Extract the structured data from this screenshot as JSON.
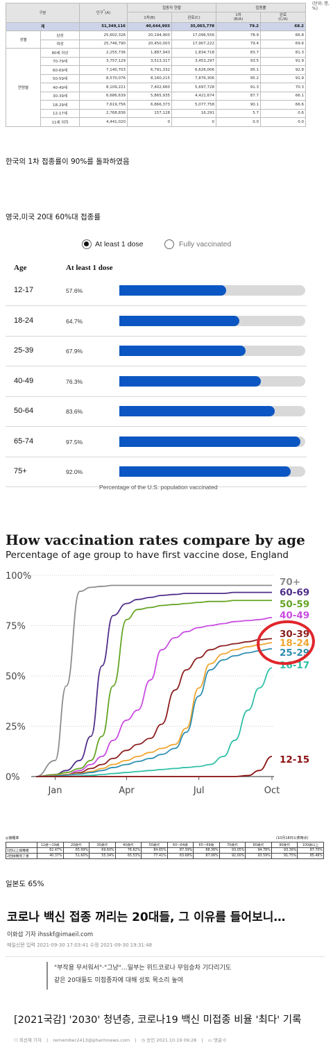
{
  "kr_table": {
    "corner_fragment": "(단위: 명, %)",
    "head": {
      "group": "구분",
      "population": "인구",
      "vaccinated_group": "접종자 현황",
      "first_dose": "1차(B)",
      "completed": "완료(C)",
      "rate_group": "접종률",
      "first_rate": "1차",
      "first_rate_sub": "(B/A)",
      "completed_rate": "완료",
      "completed_rate_sub": "(C/A)"
    },
    "total": {
      "label": "계",
      "population": "51,349,116",
      "first": "40,644,903",
      "completed": "35,003,778",
      "first_rate": "79.2",
      "completed_rate": "68.2"
    },
    "sex_label": "성별",
    "sex_rows": [
      {
        "label": "남성",
        "population": "25,602,326",
        "first": "20,194,900",
        "completed": "17,096,556",
        "first_rate": "78.9",
        "completed_rate": "66.8"
      },
      {
        "label": "여성",
        "population": "25,746,790",
        "first": "20,450,003",
        "completed": "17,907,222",
        "first_rate": "79.4",
        "completed_rate": "69.6"
      }
    ],
    "age_label": "연령별",
    "age_rows": [
      {
        "label": "80세 이상",
        "population": "2,255,736",
        "first": "1,887,943",
        "completed": "1,834,718",
        "first_rate": "83.7",
        "completed_rate": "81.3"
      },
      {
        "label": "70-79세",
        "population": "3,757,129",
        "first": "3,513,317",
        "completed": "3,453,297",
        "first_rate": "93.5",
        "completed_rate": "91.9"
      },
      {
        "label": "60-69세",
        "population": "7,140,703",
        "first": "6,791,332",
        "completed": "6,626,006",
        "first_rate": "95.1",
        "completed_rate": "92.8"
      },
      {
        "label": "50-59세",
        "population": "8,570,076",
        "first": "8,160,215",
        "completed": "7,876,306",
        "first_rate": "95.2",
        "completed_rate": "91.9"
      },
      {
        "label": "40-49세",
        "population": "8,109,221",
        "first": "7,402,660",
        "completed": "5,697,728",
        "first_rate": "91.3",
        "completed_rate": "70.3"
      },
      {
        "label": "30-39세",
        "population": "6,686,639",
        "first": "5,865,935",
        "completed": "4,421,674",
        "first_rate": "87.7",
        "completed_rate": "66.1"
      },
      {
        "label": "18-29세",
        "population": "7,619,756",
        "first": "6,866,373",
        "completed": "5,077,758",
        "first_rate": "90.1",
        "completed_rate": "66.6"
      },
      {
        "label": "12-17세",
        "population": "2,768,836",
        "first": "157,128",
        "completed": "16,291",
        "first_rate": "5.7",
        "completed_rate": "0.6"
      },
      {
        "label": "11세 이하",
        "population": "4,441,020",
        "first": "0",
        "completed": "0",
        "first_rate": "0.0",
        "completed_rate": "0.0"
      }
    ]
  },
  "caption_kr": "한국의 1차 접종률이 90%를 돌파하였음",
  "caption_uk_us": "영국,미국 20대 60%대 접종률",
  "us_chart": {
    "legend_on": "At least 1 dose",
    "legend_off": "Fully vaccinated",
    "col_age": "Age",
    "col_measure": "At least 1 dose",
    "footer": "Percentage of the U.S. population vaccinated",
    "fill_color": "#0b56c2",
    "track_color": "#d9d9d9"
  },
  "en_chart": {
    "title": "How vaccination rates compare by age",
    "subtitle": "Percentage of age group to have first vaccine dose, England",
    "highlight_color": "#e0262b"
  },
  "chart_data": [
    {
      "type": "bar",
      "categories": [
        "12-17",
        "18-24",
        "25-39",
        "40-49",
        "50-64",
        "65-74",
        "75+"
      ],
      "values": [
        57.6,
        64.7,
        67.9,
        76.3,
        83.6,
        97.5,
        92.0
      ],
      "value_labels": [
        "57.6%",
        "64.7%",
        "67.9%",
        "76.3%",
        "83.6%",
        "97.5%",
        "92.0%"
      ],
      "xlabel": "Percentage of the U.S. population vaccinated",
      "ylabel": "Age",
      "ylim": [
        0,
        100
      ]
    },
    {
      "type": "line",
      "title": "How vaccination rates compare by age",
      "subtitle": "Percentage of age group to have first vaccine dose, England",
      "x_ticks": [
        "Jan",
        "Apr",
        "Jul",
        "Oct"
      ],
      "y_ticks": [
        "0%",
        "25%",
        "50%",
        "75%",
        "100%"
      ],
      "ylim": [
        0,
        100
      ],
      "grid": true,
      "x": [
        "2020-12-08",
        "2021-01-01",
        "2021-01-15",
        "2021-02-01",
        "2021-02-15",
        "2021-03-01",
        "2021-03-15",
        "2021-04-01",
        "2021-04-15",
        "2021-05-01",
        "2021-05-15",
        "2021-06-01",
        "2021-06-15",
        "2021-07-01",
        "2021-07-15",
        "2021-08-01",
        "2021-08-15",
        "2021-09-01",
        "2021-09-15",
        "2021-10-01"
      ],
      "series": [
        {
          "name": "70+",
          "color": "#8c8c8c",
          "values": [
            0,
            8,
            45,
            92,
            94,
            94.5,
            95,
            95,
            95,
            95,
            95,
            95,
            95,
            95,
            95,
            95,
            95,
            95,
            95,
            95
          ]
        },
        {
          "name": "60-69",
          "color": "#4f2e8a",
          "values": [
            0,
            1,
            3,
            8,
            20,
            55,
            80,
            86,
            88,
            89,
            90,
            90.5,
            91,
            91,
            91,
            91,
            91.5,
            91.5,
            91.5,
            91.5
          ]
        },
        {
          "name": "50-59",
          "color": "#64a424",
          "values": [
            0,
            1,
            2,
            4,
            8,
            20,
            45,
            78,
            83,
            84,
            85,
            85.5,
            86,
            86.5,
            87,
            87,
            87.5,
            87.5,
            87.5,
            87.5
          ]
        },
        {
          "name": "40-49",
          "color": "#c94ce0",
          "values": [
            0,
            0.5,
            1,
            3,
            6,
            10,
            18,
            28,
            33,
            48,
            63,
            69,
            72,
            74,
            75,
            76,
            77,
            77.5,
            78,
            79
          ]
        },
        {
          "name": "30-39",
          "color": "#8c1e1e",
          "values": [
            0,
            0.5,
            1,
            2,
            4,
            6,
            9,
            13,
            16,
            19,
            26,
            43,
            53,
            59,
            63,
            65,
            66,
            67,
            68,
            68.5
          ]
        },
        {
          "name": "18-24",
          "color": "#f0a630",
          "values": [
            0,
            0.5,
            1,
            1.5,
            2.5,
            4,
            6,
            8,
            10,
            12,
            14,
            16,
            24,
            44,
            56,
            61,
            63,
            64.5,
            65.5,
            66.5
          ]
        },
        {
          "name": "25-29",
          "color": "#2d8db0",
          "values": [
            0,
            0.3,
            0.7,
            1.2,
            2,
            3,
            4.5,
            6,
            7.5,
            9,
            11,
            14,
            22,
            40,
            53,
            58,
            60,
            61.5,
            62.5,
            63.5
          ]
        },
        {
          "name": "16-17",
          "color": "#2fbfa6",
          "values": [
            0,
            0,
            0,
            0.3,
            0.6,
            1,
            1.5,
            2,
            2.5,
            3,
            3.5,
            4,
            4.5,
            5,
            6,
            10,
            18,
            33,
            44,
            54
          ]
        },
        {
          "name": "12-15",
          "color": "#8a1010",
          "values": [
            0,
            0,
            0,
            0,
            0,
            0,
            0,
            0,
            0,
            0,
            0,
            0,
            0,
            0,
            0,
            0,
            0,
            0.5,
            3,
            10
          ]
        }
      ]
    }
  ],
  "jp_table": {
    "corner": "◎接種率",
    "note": "(10月18日公表時点)",
    "columns": [
      "12歳～19歳",
      "20歳代",
      "30歳代",
      "40歳代",
      "50歳代",
      "60～64歳",
      "65～69歳",
      "70歳代",
      "80歳代",
      "90歳代",
      "100歳以上"
    ],
    "rows": [
      {
        "label": "1回以上接種者",
        "values": [
          "62.47%",
          "65.99%",
          "69.60%",
          "76.62%",
          "84.65%",
          "87.39%",
          "88.36%",
          "93.05%",
          "94.78%",
          "93.36%",
          "87.70%"
        ]
      },
      {
        "label": "2回接種完了者",
        "values": [
          "40.37%",
          "51.60%",
          "55.34%",
          "65.53%",
          "77.41%",
          "83.68%",
          "87.06%",
          "92.00%",
          "93.59%",
          "91.75%",
          "85.46%"
        ]
      }
    ]
  },
  "caption_jp": "일본도 65%",
  "article1": {
    "headline": "코로나 백신 접종 꺼리는 20대들, 그 이유를 들어보니…",
    "byline": "이화섭 기자 ihsskf@imaeil.com",
    "dates": "매일신문 입력 2021-09-30 17:03:41 수정 2021-09-30 19:31:48",
    "quote_line1": "\"부작용 무서워서\"·\"그냥\"…일부는 위드코로나 무임승차 기다리기도",
    "quote_line2": "같은 20대들도 미접종자에 대해 성토 목소리 높여"
  },
  "article2": {
    "headline": "[2021국감] '2030' 청년층, 코로나19 백신 미접종 비율 '최다' 기록",
    "reporter": "최선재 기자",
    "email": "remember2413@pharmnews.com",
    "approved": "승인 2021.10.19 09:28",
    "comments": "댓글 0"
  }
}
